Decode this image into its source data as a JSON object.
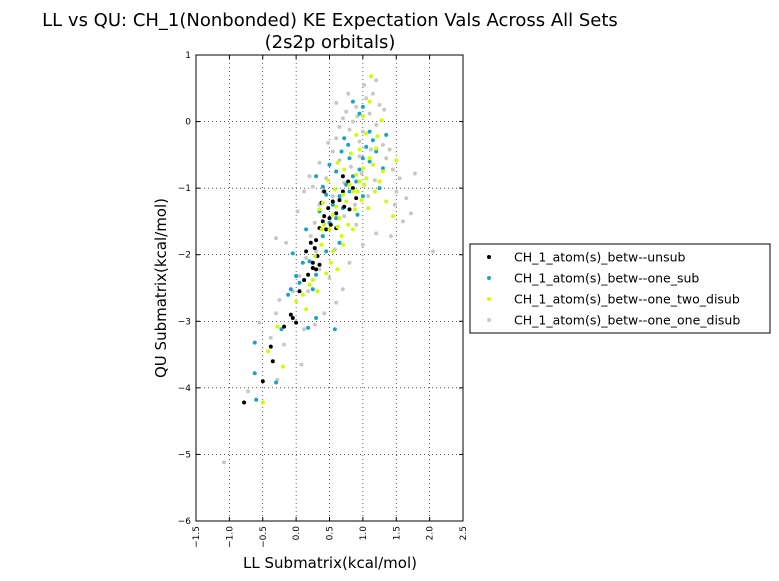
{
  "chart_data": {
    "type": "scatter",
    "title_line1": "LL vs QU: CH_1(Nonbonded) KE Expectation Vals Across All Sets",
    "title_line2": "(2s2p orbitals)",
    "xlabel": "LL Submatrix(kcal/mol)",
    "ylabel": "QU Submatrix(kcal/mol)",
    "xlim": [
      -1.5,
      2.5
    ],
    "ylim": [
      -6,
      1
    ],
    "xticks": [
      "−1.5",
      "−1.0",
      "−0.5",
      "0.0",
      "0.5",
      "1.0",
      "1.5",
      "2.0",
      "2.5"
    ],
    "yticks": [
      "−6",
      "−5",
      "−4",
      "−3",
      "−2",
      "−1",
      "0",
      "1"
    ],
    "grid": true,
    "legend_position": "outside right",
    "series": [
      {
        "name": "CH_1_atom(s)_betw--unsub",
        "color": "#000000",
        "points": [
          [
            -0.78,
            -4.22
          ],
          [
            -0.5,
            -3.9
          ],
          [
            -0.35,
            -3.6
          ],
          [
            -0.38,
            -3.38
          ],
          [
            -0.18,
            -3.08
          ],
          [
            -0.08,
            -2.9
          ],
          [
            -0.05,
            -2.95
          ],
          [
            0.0,
            -3.02
          ],
          [
            0.05,
            -2.55
          ],
          [
            0.12,
            -2.38
          ],
          [
            0.18,
            -2.3
          ],
          [
            0.25,
            -2.2
          ],
          [
            0.3,
            -2.22
          ],
          [
            0.35,
            -2.15
          ],
          [
            0.22,
            -1.82
          ],
          [
            0.3,
            -1.78
          ],
          [
            0.35,
            -1.6
          ],
          [
            0.4,
            -1.5
          ],
          [
            0.42,
            -1.42
          ],
          [
            0.48,
            -1.3
          ],
          [
            0.5,
            -1.45
          ],
          [
            0.52,
            -1.55
          ],
          [
            0.45,
            -1.62
          ],
          [
            0.55,
            -1.2
          ],
          [
            0.6,
            -1.38
          ],
          [
            0.65,
            -1.18
          ],
          [
            0.7,
            -1.05
          ],
          [
            0.72,
            -1.28
          ],
          [
            0.78,
            -0.9
          ],
          [
            0.8,
            -1.32
          ],
          [
            0.85,
            -1.0
          ],
          [
            0.9,
            -1.15
          ],
          [
            0.38,
            -1.22
          ],
          [
            0.42,
            -1.05
          ],
          [
            0.28,
            -1.9
          ],
          [
            0.32,
            -2.02
          ],
          [
            0.15,
            -1.95
          ],
          [
            0.6,
            -1.6
          ],
          [
            0.25,
            -2.12
          ],
          [
            0.7,
            -0.82
          ]
        ]
      },
      {
        "name": "CH_1_atom(s)_betw--one_sub",
        "color": "#1aa3c8",
        "points": [
          [
            -0.6,
            -4.18
          ],
          [
            -0.62,
            -3.78
          ],
          [
            -0.62,
            -3.32
          ],
          [
            -0.3,
            -3.92
          ],
          [
            -0.22,
            -3.12
          ],
          [
            -0.12,
            -2.6
          ],
          [
            -0.08,
            -2.52
          ],
          [
            0.05,
            -2.42
          ],
          [
            0.2,
            -2.1
          ],
          [
            0.25,
            -2.52
          ],
          [
            0.3,
            -2.3
          ],
          [
            0.1,
            -2.12
          ],
          [
            0.4,
            -1.72
          ],
          [
            0.45,
            -1.95
          ],
          [
            0.35,
            -1.35
          ],
          [
            0.5,
            -1.52
          ],
          [
            0.55,
            -1.25
          ],
          [
            0.6,
            -1.45
          ],
          [
            0.65,
            -1.12
          ],
          [
            0.7,
            -1.3
          ],
          [
            0.75,
            -0.95
          ],
          [
            0.8,
            -1.05
          ],
          [
            0.85,
            -0.82
          ],
          [
            0.9,
            -0.9
          ],
          [
            0.95,
            -0.72
          ],
          [
            1.0,
            -0.55
          ],
          [
            1.05,
            -0.38
          ],
          [
            1.1,
            -0.6
          ],
          [
            1.15,
            -0.28
          ],
          [
            1.2,
            -0.45
          ],
          [
            0.85,
            0.3
          ],
          [
            0.95,
            0.12
          ],
          [
            1.0,
            0.22
          ],
          [
            0.72,
            -0.25
          ],
          [
            0.68,
            -0.45
          ],
          [
            0.6,
            -0.75
          ],
          [
            0.58,
            -3.12
          ],
          [
            0.3,
            -2.95
          ],
          [
            0.18,
            -3.1
          ],
          [
            0.0,
            -2.32
          ],
          [
            -0.05,
            -1.98
          ],
          [
            0.15,
            -1.62
          ],
          [
            0.45,
            -1.1
          ],
          [
            0.8,
            -0.55
          ],
          [
            1.1,
            -0.15
          ],
          [
            1.3,
            -0.7
          ],
          [
            1.25,
            -1.0
          ],
          [
            0.92,
            -1.4
          ],
          [
            0.4,
            -0.98
          ],
          [
            0.78,
            -0.35
          ],
          [
            0.3,
            -0.82
          ],
          [
            0.5,
            -0.65
          ],
          [
            1.0,
            -1.12
          ],
          [
            1.35,
            -0.2
          ],
          [
            0.65,
            -1.82
          ]
        ]
      },
      {
        "name": "CH_1_atom(s)_betw--one_two_disub",
        "color": "#ccff00",
        "points": [
          [
            -0.5,
            -4.22
          ],
          [
            -0.42,
            -3.45
          ],
          [
            -0.2,
            -3.68
          ],
          [
            -0.28,
            -3.08
          ],
          [
            0.0,
            -2.7
          ],
          [
            0.1,
            -2.6
          ],
          [
            0.2,
            -2.45
          ],
          [
            0.28,
            -2.02
          ],
          [
            0.38,
            -1.85
          ],
          [
            0.42,
            -1.55
          ],
          [
            0.5,
            -1.62
          ],
          [
            0.55,
            -1.4
          ],
          [
            0.6,
            -1.28
          ],
          [
            0.65,
            -1.45
          ],
          [
            0.7,
            -1.1
          ],
          [
            0.75,
            -1.2
          ],
          [
            0.8,
            -0.95
          ],
          [
            0.85,
            -1.05
          ],
          [
            0.9,
            -0.8
          ],
          [
            0.95,
            -0.9
          ],
          [
            1.0,
            -0.7
          ],
          [
            1.05,
            -0.85
          ],
          [
            1.1,
            -0.55
          ],
          [
            1.15,
            -0.65
          ],
          [
            1.2,
            -0.4
          ],
          [
            1.25,
            -0.9
          ],
          [
            1.3,
            -0.75
          ],
          [
            1.35,
            -1.2
          ],
          [
            1.45,
            -1.42
          ],
          [
            1.5,
            -0.58
          ],
          [
            1.12,
            0.68
          ],
          [
            1.1,
            0.3
          ],
          [
            1.0,
            0.08
          ],
          [
            0.9,
            -0.2
          ],
          [
            0.62,
            -0.62
          ],
          [
            0.48,
            -0.88
          ],
          [
            0.35,
            -1.32
          ],
          [
            0.52,
            -2.12
          ],
          [
            0.62,
            -2.22
          ],
          [
            0.7,
            -1.85
          ],
          [
            0.78,
            -1.55
          ],
          [
            0.88,
            -1.32
          ],
          [
            0.98,
            -1.18
          ],
          [
            1.18,
            -1.05
          ],
          [
            0.15,
            -2.82
          ],
          [
            0.32,
            -2.55
          ],
          [
            0.4,
            -1.22
          ],
          [
            0.58,
            -1.02
          ],
          [
            0.72,
            -0.72
          ],
          [
            0.82,
            -0.48
          ],
          [
            0.95,
            -0.42
          ],
          [
            1.05,
            -0.18
          ],
          [
            1.22,
            -0.22
          ],
          [
            1.28,
            0.02
          ],
          [
            0.68,
            -1.72
          ],
          [
            0.55,
            -1.95
          ],
          [
            0.45,
            -2.28
          ],
          [
            0.25,
            -2.38
          ],
          [
            0.85,
            -1.62
          ],
          [
            1.08,
            -1.3
          ],
          [
            0.38,
            -1.62
          ],
          [
            0.62,
            -1.58
          ],
          [
            0.92,
            -1.05
          ],
          [
            1.02,
            -0.95
          ]
        ]
      },
      {
        "name": "CH_1_atom(s)_betw--one_one_disub",
        "color": "#c8c8c8",
        "points": [
          [
            -1.08,
            -5.12
          ],
          [
            -0.72,
            -4.05
          ],
          [
            -0.38,
            -3.25
          ],
          [
            -0.3,
            -2.88
          ],
          [
            -0.25,
            -2.68
          ],
          [
            -0.05,
            -2.55
          ],
          [
            0.05,
            -2.32
          ],
          [
            0.15,
            -2.05
          ],
          [
            0.22,
            -1.72
          ],
          [
            0.28,
            -1.52
          ],
          [
            0.35,
            -1.25
          ],
          [
            0.4,
            -1.05
          ],
          [
            0.45,
            -0.85
          ],
          [
            0.5,
            -0.65
          ],
          [
            0.55,
            -0.45
          ],
          [
            0.6,
            -0.25
          ],
          [
            0.65,
            -0.08
          ],
          [
            0.7,
            0.05
          ],
          [
            0.75,
            0.15
          ],
          [
            0.8,
            -0.12
          ],
          [
            0.85,
            0.0
          ],
          [
            0.9,
            0.22
          ],
          [
            0.95,
            -0.3
          ],
          [
            1.0,
            -0.15
          ],
          [
            1.05,
            0.35
          ],
          [
            1.1,
            0.12
          ],
          [
            1.15,
            0.42
          ],
          [
            1.2,
            -0.05
          ],
          [
            1.25,
            0.25
          ],
          [
            1.3,
            -0.35
          ],
          [
            1.35,
            -0.55
          ],
          [
            1.4,
            -0.42
          ],
          [
            1.45,
            -0.72
          ],
          [
            1.5,
            -1.05
          ],
          [
            1.55,
            -0.85
          ],
          [
            1.65,
            -1.15
          ],
          [
            1.72,
            -1.38
          ],
          [
            1.78,
            -0.78
          ],
          [
            2.05,
            -1.95
          ],
          [
            1.42,
            -1.72
          ],
          [
            1.2,
            -1.68
          ],
          [
            1.0,
            -1.85
          ],
          [
            0.9,
            -1.55
          ],
          [
            0.8,
            -2.12
          ],
          [
            0.7,
            -2.52
          ],
          [
            0.6,
            -2.72
          ],
          [
            0.5,
            -2.35
          ],
          [
            0.42,
            -2.88
          ],
          [
            0.28,
            -3.05
          ],
          [
            0.12,
            -3.12
          ],
          [
            -0.18,
            -3.35
          ],
          [
            0.08,
            -3.65
          ],
          [
            -0.28,
            -3.88
          ],
          [
            -0.55,
            -3.02
          ],
          [
            -0.15,
            -1.82
          ],
          [
            -0.3,
            -1.75
          ],
          [
            0.02,
            -1.35
          ],
          [
            0.12,
            -1.05
          ],
          [
            0.2,
            -0.82
          ],
          [
            0.35,
            -0.62
          ],
          [
            0.48,
            -0.32
          ],
          [
            0.6,
            0.28
          ],
          [
            0.78,
            0.42
          ],
          [
            1.02,
            0.55
          ],
          [
            1.2,
            0.62
          ],
          [
            1.32,
            0.18
          ],
          [
            0.35,
            -2.22
          ],
          [
            0.58,
            -1.92
          ],
          [
            0.72,
            -1.42
          ],
          [
            0.88,
            -1.25
          ],
          [
            1.08,
            -1.12
          ],
          [
            1.18,
            -0.88
          ],
          [
            0.65,
            -0.58
          ],
          [
            0.82,
            -0.68
          ],
          [
            0.95,
            -0.52
          ],
          [
            1.12,
            -0.42
          ],
          [
            0.3,
            -1.95
          ],
          [
            0.18,
            -2.55
          ],
          [
            0.55,
            -1.12
          ],
          [
            0.72,
            -0.92
          ],
          [
            1.6,
            -1.5
          ],
          [
            1.48,
            -1.25
          ],
          [
            0.25,
            -0.98
          ],
          [
            0.92,
            0.08
          ],
          [
            0.98,
            -0.78
          ]
        ]
      }
    ]
  }
}
